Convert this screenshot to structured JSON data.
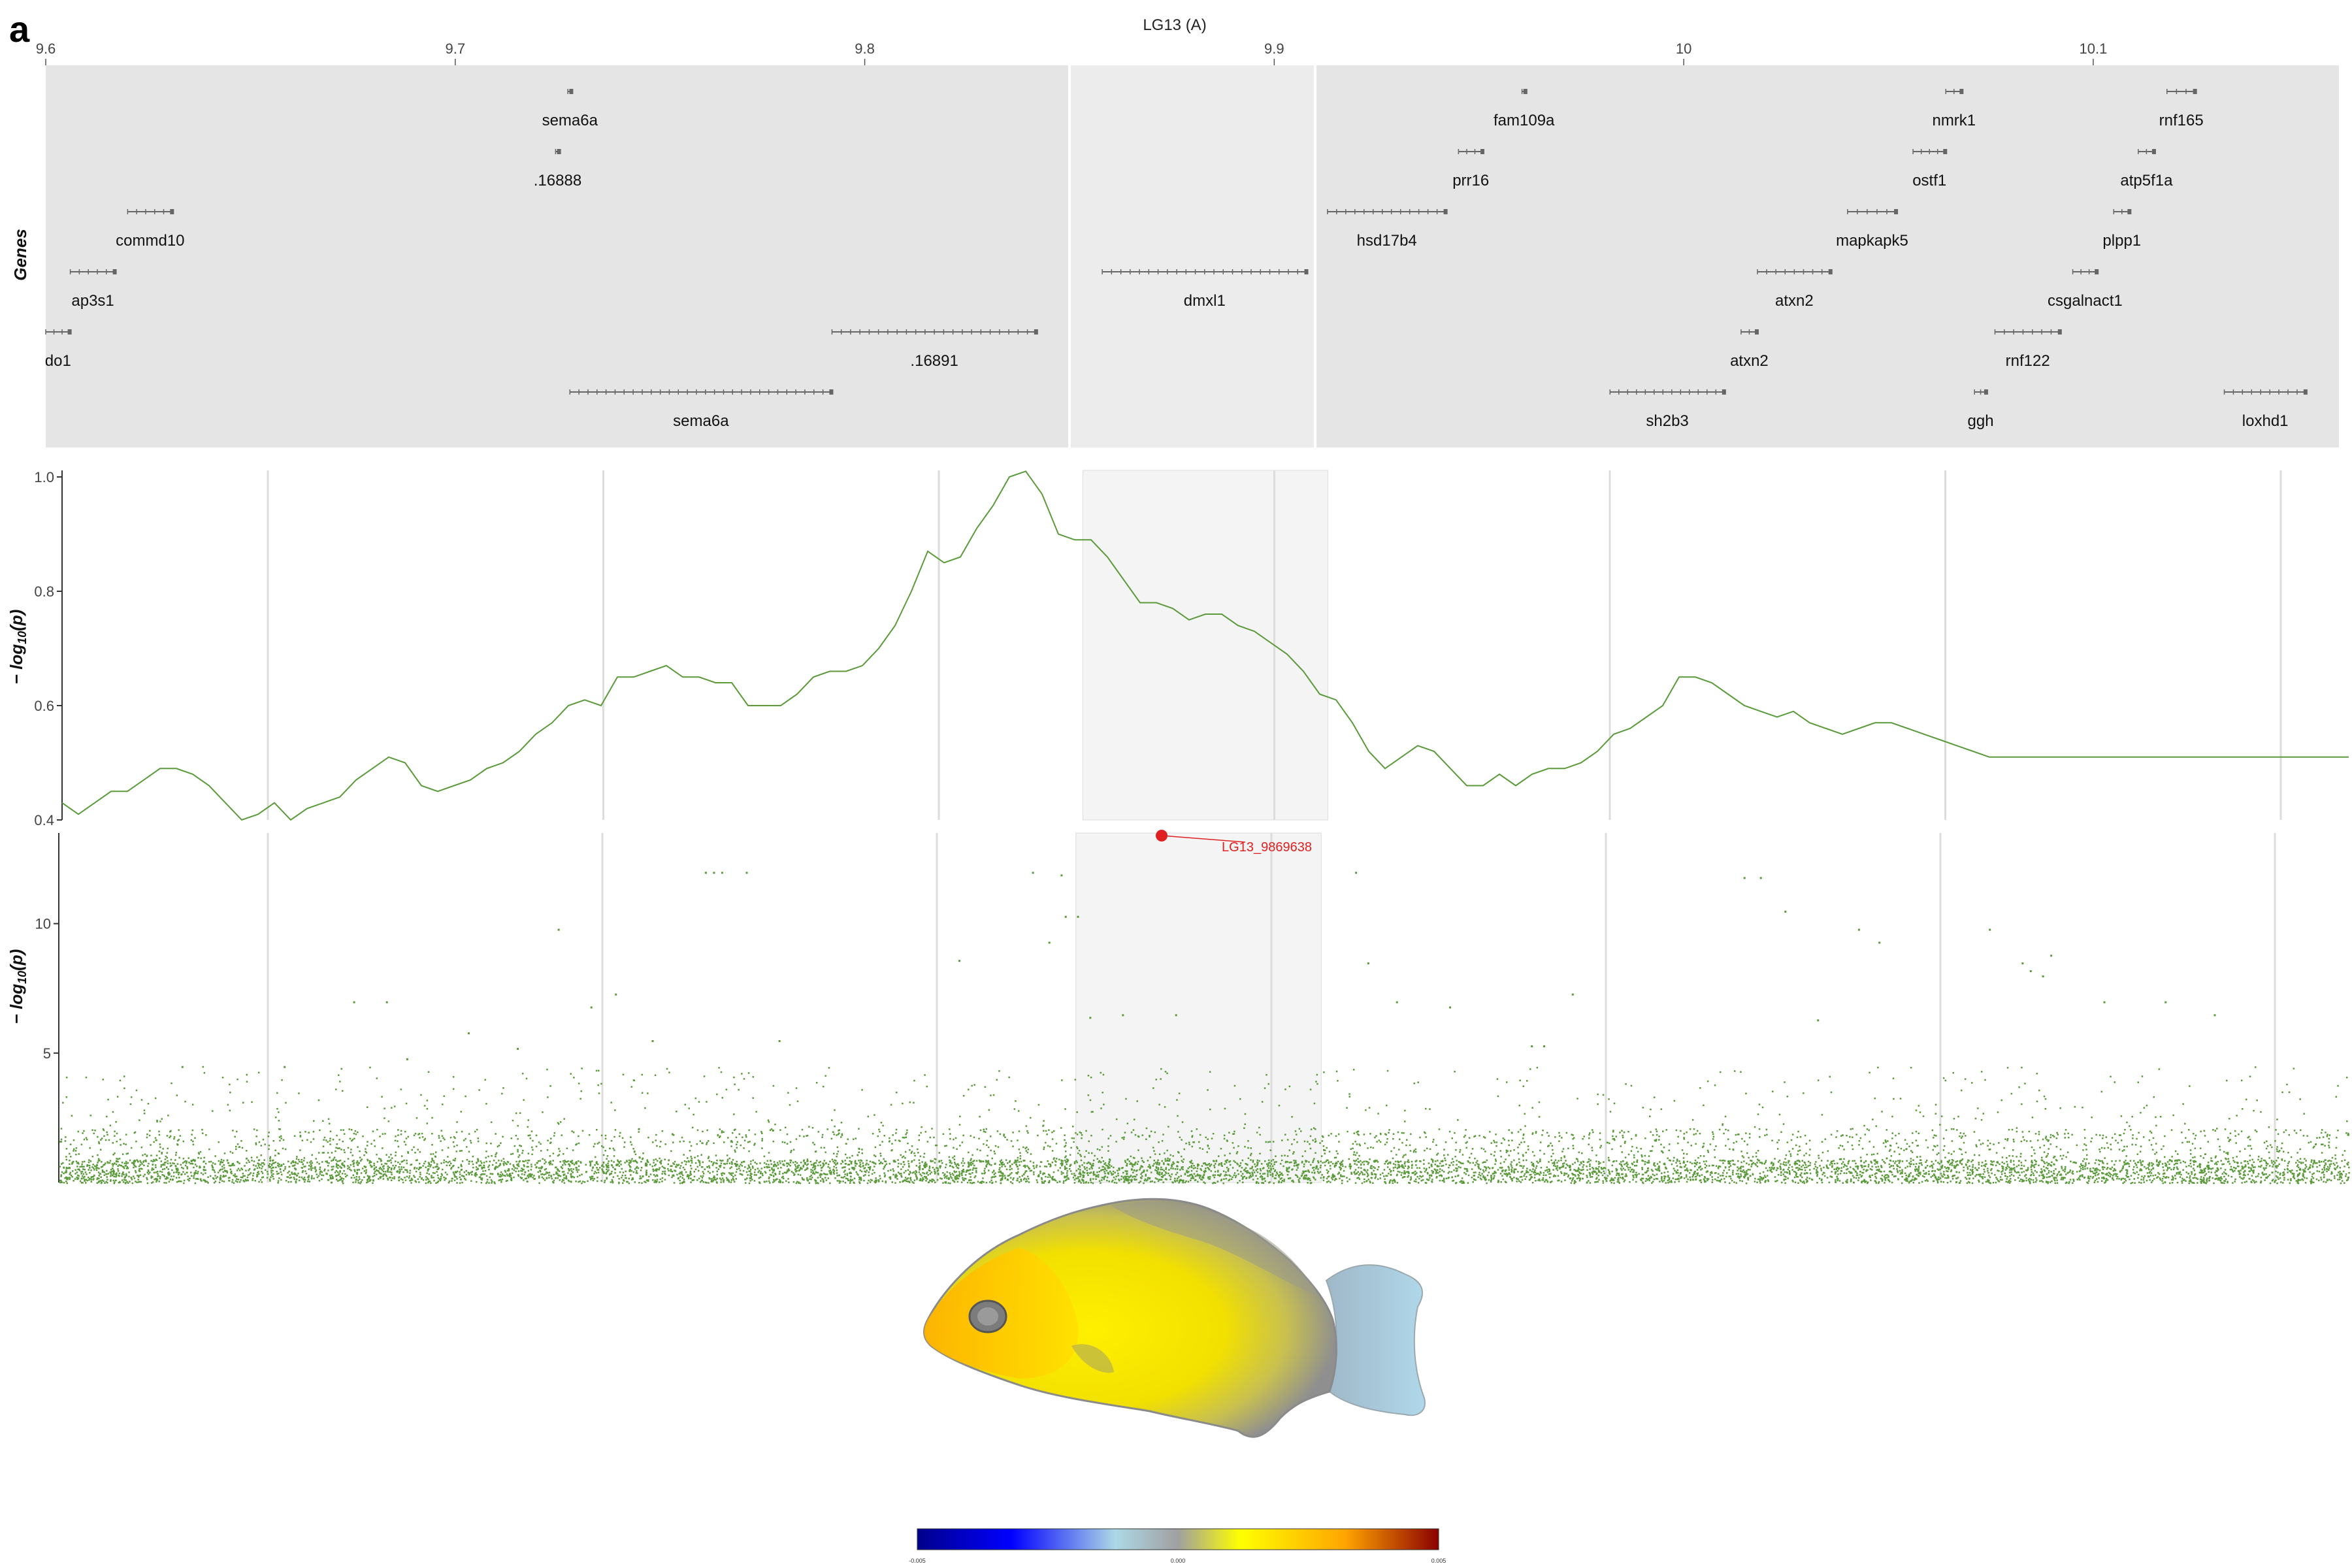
{
  "panel_label": "a",
  "chart_data": [
    {
      "type": "gene_track",
      "title": "LG13 (A)",
      "ylabel": "Genes",
      "xlim": [
        9.6,
        10.16
      ],
      "x_ticks": [
        9.6,
        9.7,
        9.8,
        9.9,
        10,
        10.1
      ],
      "x_tick_labels": [
        "9.6",
        "9.7",
        "9.8",
        "9.9",
        "10",
        "10.1"
      ],
      "highlight_region": [
        9.85,
        9.91
      ],
      "genes": [
        {
          "label": "sema6a",
          "start": 9.7275,
          "end": 9.7285,
          "row": 0
        },
        {
          "label": "fam109a",
          "start": 9.9605,
          "end": 9.9615,
          "row": 0
        },
        {
          "label": "nmrk1",
          "start": 10.064,
          "end": 10.068,
          "row": 0
        },
        {
          "label": "rnf165",
          "start": 10.118,
          "end": 10.125,
          "row": 0
        },
        {
          "label": ".16888",
          "start": 9.7245,
          "end": 9.7255,
          "row": 1
        },
        {
          "label": "prr16",
          "start": 9.945,
          "end": 9.951,
          "row": 1
        },
        {
          "label": "ostf1",
          "start": 10.056,
          "end": 10.064,
          "row": 1
        },
        {
          "label": "atp5f1a",
          "start": 10.111,
          "end": 10.115,
          "row": 1
        },
        {
          "label": "commd10",
          "start": 9.62,
          "end": 9.631,
          "row": 2
        },
        {
          "label": "hsd17b4",
          "start": 9.913,
          "end": 9.942,
          "row": 2
        },
        {
          "label": "mapkapk5",
          "start": 10.04,
          "end": 10.052,
          "row": 2
        },
        {
          "label": "plpp1",
          "start": 10.105,
          "end": 10.109,
          "row": 2
        },
        {
          "label": "ap3s1",
          "start": 9.606,
          "end": 9.617,
          "row": 3
        },
        {
          "label": "dmxl1",
          "start": 9.858,
          "end": 9.908,
          "row": 3
        },
        {
          "label": "atxn2",
          "start": 10.018,
          "end": 10.036,
          "row": 3
        },
        {
          "label": "csgalnact1",
          "start": 10.095,
          "end": 10.101,
          "row": 3
        },
        {
          "label": "do1",
          "start": 9.6,
          "end": 9.606,
          "row": 4
        },
        {
          "label": ".16891",
          "start": 9.792,
          "end": 9.842,
          "row": 4
        },
        {
          "label": "atxn2",
          "start": 10.014,
          "end": 10.018,
          "row": 4
        },
        {
          "label": "rnf122",
          "start": 10.076,
          "end": 10.092,
          "row": 4
        },
        {
          "label": "sema6a",
          "start": 9.728,
          "end": 9.792,
          "row": 5
        },
        {
          "label": "sh2b3",
          "start": 9.982,
          "end": 10.01,
          "row": 5
        },
        {
          "label": "ggh",
          "start": 10.071,
          "end": 10.074,
          "row": 5
        },
        {
          "label": "loxhd1",
          "start": 10.132,
          "end": 10.152,
          "row": 5
        }
      ]
    },
    {
      "type": "line",
      "ylabel_prefix": "− log",
      "ylabel_sub": "10",
      "ylabel_suffix": "(p)",
      "ylim": [
        0.4,
        1.0
      ],
      "y_ticks": [
        0.4,
        0.6,
        0.8,
        1.0
      ],
      "y_tick_labels": [
        "0.4",
        "0.6",
        "0.8",
        "1.0"
      ],
      "xlim": [
        9.6,
        10.16
      ],
      "highlight_region": [
        9.85,
        9.91
      ],
      "x": [
        9.6,
        9.604,
        9.608,
        9.612,
        9.616,
        9.62,
        9.624,
        9.628,
        9.632,
        9.636,
        9.64,
        9.644,
        9.648,
        9.652,
        9.656,
        9.66,
        9.664,
        9.668,
        9.672,
        9.676,
        9.68,
        9.684,
        9.688,
        9.692,
        9.696,
        9.7,
        9.704,
        9.708,
        9.712,
        9.716,
        9.72,
        9.724,
        9.728,
        9.732,
        9.736,
        9.74,
        9.744,
        9.748,
        9.752,
        9.756,
        9.76,
        9.764,
        9.768,
        9.772,
        9.776,
        9.78,
        9.784,
        9.788,
        9.792,
        9.796,
        9.8,
        9.804,
        9.808,
        9.812,
        9.816,
        9.82,
        9.824,
        9.828,
        9.832,
        9.836,
        9.84,
        9.844,
        9.848,
        9.852,
        9.856,
        9.86,
        9.864,
        9.868,
        9.872,
        9.876,
        9.88,
        9.884,
        9.888,
        9.892,
        9.896,
        9.9,
        9.904,
        9.908,
        9.912,
        9.916,
        9.92,
        9.924,
        9.928,
        9.932,
        9.936,
        9.94,
        9.944,
        9.948,
        9.952,
        9.956,
        9.96,
        9.964,
        9.968,
        9.972,
        9.976,
        9.98,
        9.984,
        9.988,
        9.992,
        9.996,
        10.0,
        10.004,
        10.008,
        10.012,
        10.016,
        10.02,
        10.024,
        10.028,
        10.032,
        10.036,
        10.04,
        10.044,
        10.048,
        10.052,
        10.056,
        10.06,
        10.064,
        10.068,
        10.072,
        10.076,
        10.08,
        10.084,
        10.088,
        10.092,
        10.096,
        10.1,
        10.104,
        10.108,
        10.112,
        10.116,
        10.12,
        10.124,
        10.128,
        10.132,
        10.136,
        10.14,
        10.144,
        10.148,
        10.152,
        10.156,
        10.16
      ],
      "y": [
        0.43,
        0.41,
        0.43,
        0.45,
        0.45,
        0.47,
        0.49,
        0.49,
        0.48,
        0.46,
        0.43,
        0.4,
        0.41,
        0.43,
        0.4,
        0.42,
        0.43,
        0.44,
        0.47,
        0.49,
        0.51,
        0.5,
        0.46,
        0.45,
        0.46,
        0.47,
        0.49,
        0.5,
        0.52,
        0.55,
        0.57,
        0.6,
        0.61,
        0.6,
        0.65,
        0.65,
        0.66,
        0.67,
        0.65,
        0.65,
        0.64,
        0.64,
        0.6,
        0.6,
        0.6,
        0.62,
        0.65,
        0.66,
        0.66,
        0.67,
        0.7,
        0.74,
        0.8,
        0.87,
        0.85,
        0.86,
        0.91,
        0.95,
        1.0,
        1.01,
        0.97,
        0.9,
        0.89,
        0.89,
        0.86,
        0.82,
        0.78,
        0.78,
        0.77,
        0.75,
        0.76,
        0.76,
        0.74,
        0.73,
        0.71,
        0.69,
        0.66,
        0.62,
        0.61,
        0.57,
        0.52,
        0.49,
        0.51,
        0.53,
        0.52,
        0.49,
        0.46,
        0.46,
        0.48,
        0.46,
        0.48,
        0.49,
        0.49,
        0.5,
        0.52,
        0.55,
        0.56,
        0.58,
        0.6,
        0.65,
        0.65,
        0.64,
        0.62,
        0.6,
        0.59,
        0.58,
        0.59,
        0.57,
        0.56,
        0.55,
        0.56,
        0.57,
        0.57,
        0.56,
        0.55,
        0.54,
        0.53,
        0.52,
        0.51,
        0.51,
        0.51,
        0.51,
        0.51,
        0.51,
        0.51,
        0.51,
        0.51,
        0.51,
        0.51,
        0.51,
        0.51,
        0.51,
        0.51,
        0.51,
        0.51,
        0.51,
        0.51,
        0.51,
        0.51,
        0.51,
        0.51
      ],
      "line_color": "#5a9a3a"
    },
    {
      "type": "scatter",
      "ylabel_prefix": "− log",
      "ylabel_sub": "10",
      "ylabel_suffix": "(p)",
      "ylim": [
        0,
        13.5
      ],
      "y_ticks": [
        5,
        10
      ],
      "y_tick_labels": [
        "5",
        "10"
      ],
      "xlim": [
        9.6,
        10.16
      ],
      "highlight_region": [
        9.85,
        9.91
      ],
      "point_color": "#5a9a3a",
      "top_snp": {
        "label": "LG13_9869638",
        "x": 9.8697,
        "y": 13.5,
        "color": "#e02020"
      },
      "notable_points": [
        {
          "x": 9.758,
          "y": 12.0
        },
        {
          "x": 9.76,
          "y": 12.0
        },
        {
          "x": 9.762,
          "y": 12.0
        },
        {
          "x": 9.768,
          "y": 12.0
        },
        {
          "x": 9.838,
          "y": 12.0
        },
        {
          "x": 9.845,
          "y": 11.9
        },
        {
          "x": 9.917,
          "y": 12.0
        },
        {
          "x": 9.722,
          "y": 9.8
        },
        {
          "x": 9.846,
          "y": 10.3
        },
        {
          "x": 9.849,
          "y": 10.3
        },
        {
          "x": 9.842,
          "y": 9.3
        },
        {
          "x": 10.012,
          "y": 11.8
        },
        {
          "x": 10.016,
          "y": 11.8
        },
        {
          "x": 10.022,
          "y": 10.5
        },
        {
          "x": 10.04,
          "y": 9.8
        },
        {
          "x": 10.045,
          "y": 9.3
        },
        {
          "x": 10.072,
          "y": 9.8
        },
        {
          "x": 10.08,
          "y": 8.5
        },
        {
          "x": 10.082,
          "y": 8.2
        },
        {
          "x": 10.085,
          "y": 8.0
        },
        {
          "x": 10.087,
          "y": 8.8
        },
        {
          "x": 9.672,
          "y": 7.0
        },
        {
          "x": 9.68,
          "y": 7.0
        },
        {
          "x": 9.7,
          "y": 5.8
        },
        {
          "x": 9.73,
          "y": 6.8
        },
        {
          "x": 9.736,
          "y": 7.3
        },
        {
          "x": 9.82,
          "y": 8.6
        },
        {
          "x": 9.852,
          "y": 6.4
        },
        {
          "x": 9.86,
          "y": 6.5
        },
        {
          "x": 9.873,
          "y": 6.5
        },
        {
          "x": 9.92,
          "y": 8.5
        },
        {
          "x": 9.927,
          "y": 7.0
        },
        {
          "x": 9.94,
          "y": 6.8
        },
        {
          "x": 9.96,
          "y": 5.3
        },
        {
          "x": 9.963,
          "y": 5.3
        },
        {
          "x": 9.97,
          "y": 7.3
        },
        {
          "x": 10.03,
          "y": 6.3
        },
        {
          "x": 10.1,
          "y": 7.0
        },
        {
          "x": 10.115,
          "y": 7.0
        },
        {
          "x": 10.127,
          "y": 6.5
        },
        {
          "x": 9.63,
          "y": 4.5
        },
        {
          "x": 9.655,
          "y": 4.5
        },
        {
          "x": 9.685,
          "y": 4.8
        },
        {
          "x": 9.712,
          "y": 5.2
        },
        {
          "x": 9.745,
          "y": 5.5
        },
        {
          "x": 9.776,
          "y": 5.5
        }
      ]
    },
    {
      "type": "colorbar",
      "vmin": -0.005,
      "vmax": 0.005,
      "tick_labels": [
        "-0.005",
        "0.000",
        "0.005"
      ],
      "stops": [
        "#00008b",
        "#0000ff",
        "#add8e6",
        "#a0a0a0",
        "#ffff00",
        "#ffa500",
        "#8b0000"
      ]
    }
  ]
}
